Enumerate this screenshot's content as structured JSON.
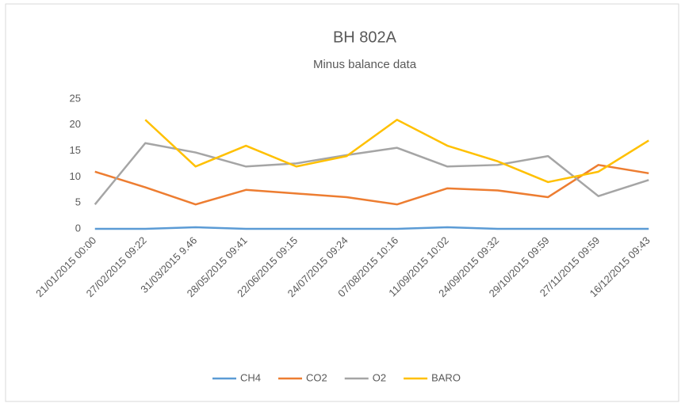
{
  "chart_data": {
    "type": "line",
    "title": "BH 802A",
    "subtitle": "Minus balance data",
    "categories": [
      "21/01/2015 00:00",
      "27/02/2015 09:22",
      "31/03/2015 9.46",
      "28/05/2015 09:41",
      "22/06/2015 09:15",
      "24/07/2015 09:24",
      "07/08/2015 10:16",
      "11/09/2015 10:02",
      "24/09/2015 09:32",
      "29/10/2015 09:59",
      "27/11/2015 09:59",
      "16/12/2015 09:43"
    ],
    "series": [
      {
        "name": "CH4",
        "color": "#5b9bd5",
        "values": [
          0,
          0,
          0.3,
          0,
          0,
          0,
          0,
          0.3,
          0,
          0,
          0,
          0
        ]
      },
      {
        "name": "CO2",
        "color": "#ed7d31",
        "values": [
          11,
          8,
          4.7,
          7.5,
          6.8,
          6.1,
          4.7,
          7.8,
          7.4,
          6.1,
          12.3,
          10.7
        ]
      },
      {
        "name": "O2",
        "color": "#a5a5a5",
        "values": [
          4.7,
          16.5,
          14.7,
          12,
          12.6,
          14.2,
          15.6,
          12,
          12.3,
          14,
          6.3,
          9.4
        ]
      },
      {
        "name": "BARO",
        "color": "#ffc000",
        "values": [
          null,
          21,
          12,
          16,
          12,
          14,
          21,
          16,
          13,
          9,
          11,
          17
        ]
      }
    ],
    "ylim": [
      0,
      25
    ],
    "yticks": [
      0,
      5,
      10,
      15,
      20,
      25
    ],
    "grid": false,
    "legend": "bottom"
  }
}
